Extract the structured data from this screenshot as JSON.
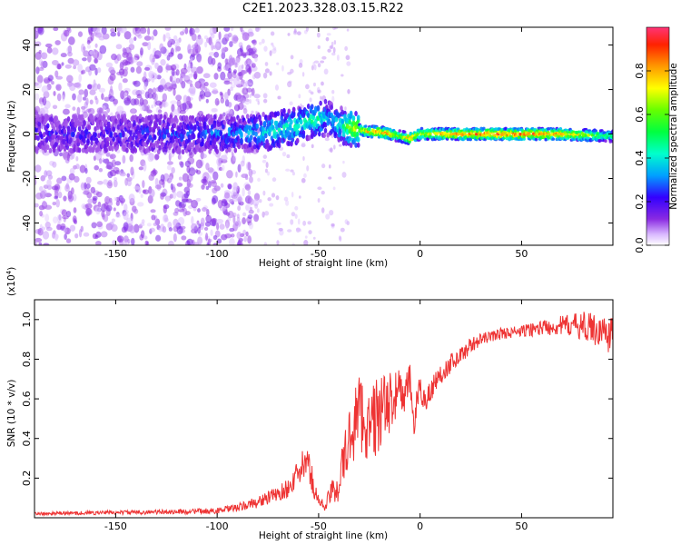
{
  "title": "C2E1.2023.328.03.15.R22",
  "chart_data": [
    {
      "type": "heatmap",
      "xlabel": "Height of straight line (km)",
      "ylabel": "Frequency (Hz)",
      "xlim": [
        -190,
        95
      ],
      "ylim": [
        -50,
        48
      ],
      "xticks": [
        -150,
        -100,
        -50,
        0,
        50
      ],
      "yticks": [
        -40,
        -20,
        0,
        20,
        40
      ],
      "colorbar": {
        "label": "Normalized spectral amplitude",
        "range": [
          0.0,
          1.0
        ],
        "ticks": [
          0.0,
          0.2,
          0.4,
          0.6,
          0.8
        ],
        "ticklabels": [
          "0.0",
          "0.2",
          "0.4",
          "0.6",
          "0.8"
        ]
      },
      "ridge": {
        "x": [
          -190,
          -150,
          -110,
          -90,
          -75,
          -60,
          -50,
          -45,
          -40,
          -35,
          -30,
          -25,
          -20,
          -15,
          -10,
          -5,
          0,
          10,
          30,
          50,
          70,
          95
        ],
        "freq": [
          0,
          0,
          0,
          0,
          1,
          4,
          7,
          7,
          4,
          3,
          2,
          1,
          1,
          0,
          -1,
          -2,
          0,
          0,
          0,
          0,
          0,
          -1
        ],
        "amplitude": [
          0.2,
          0.2,
          0.25,
          0.3,
          0.4,
          0.45,
          0.45,
          0.3,
          0.4,
          0.6,
          0.7,
          0.8,
          0.85,
          0.8,
          0.6,
          0.85,
          0.7,
          0.85,
          0.9,
          0.9,
          0.85,
          0.5
        ]
      }
    },
    {
      "type": "line",
      "xlabel": "Height of straight line (km)",
      "ylabel": "SNR (10 * v/v)",
      "y_multiplier": "(x10",
      "y_multiplier_exp": "4",
      "y_multiplier_close": ")",
      "xlim": [
        -190,
        95
      ],
      "ylim": [
        0,
        1.1
      ],
      "xticks": [
        -150,
        -100,
        -50,
        0,
        50
      ],
      "yticks": [
        0.2,
        0.4,
        0.6,
        0.8,
        1.0
      ],
      "ytick_labels": [
        "0.2",
        "0.4",
        "0.6",
        "0.8",
        "1.0"
      ],
      "series": [
        {
          "color": "#ee3333",
          "x": [
            -190,
            -160,
            -120,
            -100,
            -90,
            -80,
            -75,
            -70,
            -65,
            -60,
            -57,
            -55,
            -52,
            -50,
            -47,
            -45,
            -40,
            -36,
            -34,
            -32,
            -30,
            -28,
            -25,
            -22,
            -20,
            -18,
            -15,
            -12,
            -10,
            -8,
            -5,
            -3,
            -1,
            0,
            2,
            5,
            8,
            10,
            15,
            20,
            25,
            30,
            40,
            50,
            60,
            70,
            80,
            90,
            95
          ],
          "y": [
            0.02,
            0.025,
            0.03,
            0.035,
            0.05,
            0.08,
            0.1,
            0.12,
            0.15,
            0.22,
            0.28,
            0.26,
            0.15,
            0.08,
            0.06,
            0.1,
            0.18,
            0.35,
            0.42,
            0.5,
            0.55,
            0.5,
            0.45,
            0.5,
            0.55,
            0.52,
            0.58,
            0.62,
            0.66,
            0.6,
            0.7,
            0.48,
            0.6,
            0.65,
            0.6,
            0.63,
            0.7,
            0.72,
            0.78,
            0.82,
            0.87,
            0.9,
            0.93,
            0.94,
            0.96,
            0.97,
            0.97,
            0.94,
            0.92
          ],
          "noise": [
            0.008,
            0.01,
            0.012,
            0.015,
            0.02,
            0.03,
            0.035,
            0.04,
            0.05,
            0.07,
            0.08,
            0.08,
            0.06,
            0.03,
            0.03,
            0.05,
            0.1,
            0.15,
            0.18,
            0.2,
            0.2,
            0.2,
            0.18,
            0.2,
            0.22,
            0.2,
            0.15,
            0.12,
            0.1,
            0.1,
            0.08,
            0.1,
            0.08,
            0.07,
            0.07,
            0.06,
            0.06,
            0.05,
            0.05,
            0.04,
            0.04,
            0.03,
            0.03,
            0.03,
            0.04,
            0.05,
            0.07,
            0.09,
            0.1
          ]
        }
      ]
    }
  ]
}
